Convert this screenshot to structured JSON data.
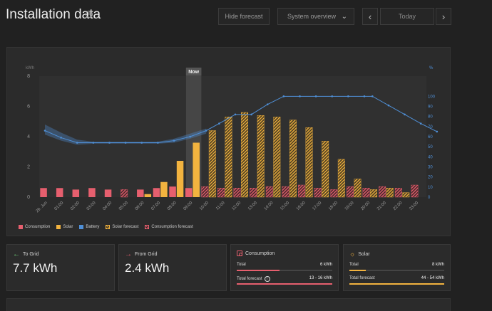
{
  "header": {
    "title": "Installation data",
    "info_icon": "info-icon",
    "hide_forecast": "Hide forecast",
    "view_select": "System overview",
    "prev_icon": "chevron-left-icon",
    "today": "Today",
    "next_icon": "chevron-right-icon"
  },
  "colors": {
    "consumption": "#e65f6e",
    "solar": "#f2b33f",
    "battery": "#4f8fd6",
    "background": "#212121"
  },
  "chart_data": {
    "type": "bar",
    "left_axis_label": "kWh",
    "right_axis_label": "%",
    "ylim": [
      0,
      8
    ],
    "y2lim": [
      0,
      120
    ],
    "left_ticks": [
      "0",
      "2",
      "4",
      "6",
      "8"
    ],
    "left_tick_values": [
      0,
      2,
      4,
      6,
      8
    ],
    "right_ticks": [
      "0",
      "10",
      "20",
      "30",
      "40",
      "50",
      "60",
      "70",
      "80",
      "90",
      "100"
    ],
    "right_tick_values": [
      0,
      10,
      20,
      30,
      40,
      50,
      60,
      70,
      80,
      90,
      100
    ],
    "now_label": "Now",
    "now_index": 10,
    "categories": [
      "29. Jun",
      "01:00",
      "02:00",
      "03:00",
      "04:00",
      "05:00",
      "06:00",
      "07:00",
      "08:00",
      "09:00",
      "10:00",
      "11:00",
      "12:00",
      "13:00",
      "14:00",
      "15:00",
      "16:00",
      "17:00",
      "18:00",
      "19:00",
      "20:00",
      "21:00",
      "22:00",
      "23:00"
    ],
    "consumption": [
      0.6,
      0.6,
      0.5,
      0.6,
      0.5,
      0.5,
      0.5,
      0.6,
      0.7,
      0.6,
      0.7,
      0.6,
      0.6,
      0.6,
      0.7,
      0.7,
      0.8,
      0.6,
      0.5,
      0.7,
      0.6,
      0.7,
      0.6,
      0.8
    ],
    "consumption_forecast": [
      false,
      false,
      false,
      false,
      false,
      true,
      false,
      false,
      false,
      false,
      true,
      true,
      true,
      true,
      true,
      true,
      true,
      true,
      true,
      true,
      true,
      true,
      true,
      true
    ],
    "solar": [
      0,
      0,
      0,
      0,
      0,
      0,
      0.2,
      1.0,
      2.4,
      3.6,
      4.4,
      5.3,
      5.6,
      5.4,
      5.3,
      5.1,
      4.6,
      3.7,
      2.5,
      1.2,
      0.5,
      0.6,
      0.3,
      0
    ],
    "solar_forecast": [
      false,
      false,
      false,
      false,
      false,
      false,
      false,
      false,
      false,
      false,
      true,
      true,
      true,
      true,
      true,
      true,
      true,
      true,
      true,
      true,
      true,
      true,
      true,
      true
    ],
    "battery_soc": [
      66,
      59,
      54,
      54,
      54,
      54,
      54,
      54,
      56,
      60,
      66,
      73,
      82,
      82,
      92,
      100,
      100,
      100,
      100,
      100,
      100,
      100,
      91,
      82,
      73,
      65
    ],
    "battery_soc_x": [
      0,
      1,
      2,
      3,
      4,
      5,
      6,
      7,
      8,
      9,
      10,
      10.8,
      11.8,
      12.8,
      13.8,
      14.8,
      15.8,
      16.8,
      17.8,
      18.8,
      19.8,
      20.3,
      21.3,
      22.3,
      23.3,
      24.3
    ],
    "battery_band_low": [
      62,
      56,
      52,
      53,
      53,
      53,
      53,
      53,
      54,
      58,
      63
    ],
    "battery_band_high": [
      72,
      64,
      57,
      55,
      55,
      55,
      55,
      55,
      58,
      63,
      68
    ],
    "legend": [
      "Consumption",
      "Solar",
      "Battery",
      "Solar forecast",
      "Consumption forecast"
    ]
  },
  "cards": {
    "to_grid": {
      "label": "To Grid",
      "value": "7.7 kWh"
    },
    "from_grid": {
      "label": "From Grid",
      "value": "2.4 kWh"
    },
    "consumption": {
      "label": "Consumption",
      "total_label": "Total",
      "total_value": "6 kWh",
      "total_fill": 0.45,
      "forecast_label": "Total forecast",
      "forecast_value": "13 - 16 kWh",
      "forecast_fill": 1.0
    },
    "solar": {
      "label": "Solar",
      "total_label": "Total",
      "total_value": "8 kWh",
      "total_fill": 0.17,
      "forecast_label": "Total forecast",
      "forecast_value": "44 - 54 kWh",
      "forecast_fill": 1.0
    }
  }
}
